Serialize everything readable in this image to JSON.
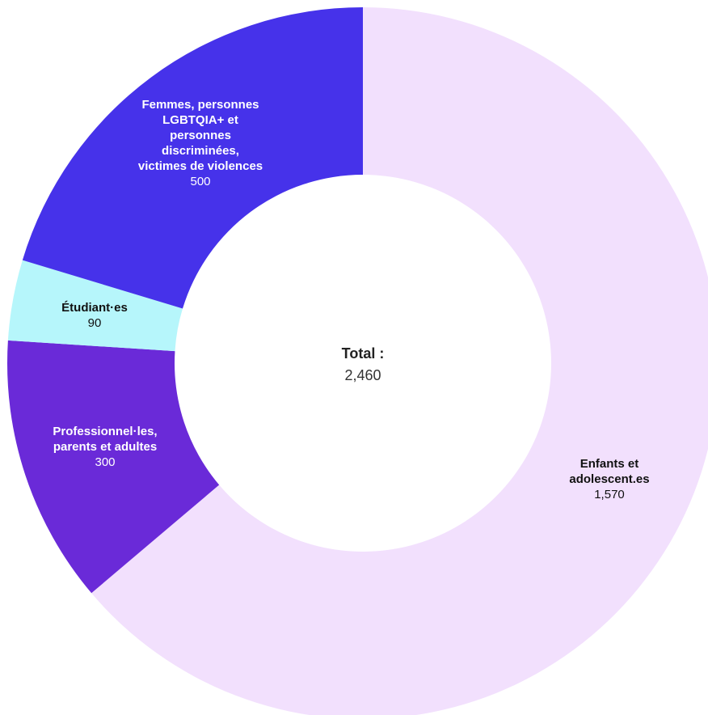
{
  "chart_data": {
    "type": "pie",
    "donut": true,
    "slices": [
      {
        "label": [
          "Enfants et",
          "adolescent.es"
        ],
        "value": 1570,
        "value_label": "1,570",
        "color": "#f2e0fd",
        "text_color": "#111111"
      },
      {
        "label": [
          "Professionnel·les,",
          "parents et adultes"
        ],
        "value": 300,
        "value_label": "300",
        "color": "#6a2ad8",
        "text_color": "#ffffff"
      },
      {
        "label": [
          "Étudiant·es"
        ],
        "value": 90,
        "value_label": "90",
        "color": "#b6f6fb",
        "text_color": "#111111"
      },
      {
        "label": [
          "Femmes, personnes",
          "LGBTQIA+ et",
          "personnes",
          "discriminées,",
          "victimes de violences"
        ],
        "value": 500,
        "value_label": "500",
        "color": "#4632ea",
        "text_color": "#ffffff"
      }
    ],
    "center": {
      "title": "Total :",
      "value": "2,460"
    }
  }
}
